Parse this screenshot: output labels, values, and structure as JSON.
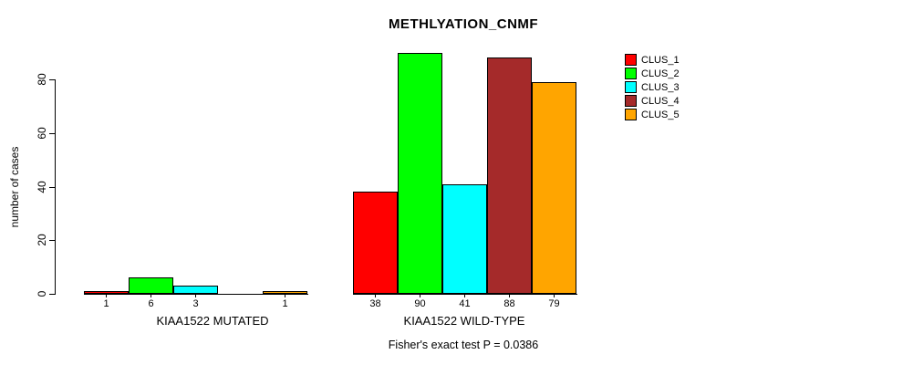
{
  "chart_data": {
    "type": "bar",
    "title": "METHLYATION_CNMF",
    "ylabel": "number of cases",
    "xlabel": "",
    "ylim": [
      0,
      90
    ],
    "yticks": [
      0,
      20,
      40,
      60,
      80
    ],
    "grid": false,
    "legend_position": "right",
    "groups": [
      "KIAA1522 MUTATED",
      "KIAA1522 WILD-TYPE"
    ],
    "series": [
      {
        "name": "CLUS_1",
        "color": "#FF0000",
        "values": [
          1,
          38
        ]
      },
      {
        "name": "CLUS_2",
        "color": "#00FF00",
        "values": [
          6,
          90
        ]
      },
      {
        "name": "CLUS_3",
        "color": "#00FFFF",
        "values": [
          3,
          41
        ]
      },
      {
        "name": "CLUS_4",
        "color": "#A52A2A",
        "values": [
          0,
          88
        ]
      },
      {
        "name": "CLUS_5",
        "color": "#FFA500",
        "values": [
          1,
          79
        ]
      }
    ],
    "bar_labels": [
      [
        "1",
        "6",
        "3",
        "",
        "1"
      ],
      [
        "38",
        "90",
        "41",
        "88",
        "79"
      ]
    ],
    "annotation": "Fisher's exact test P = 0.0386"
  }
}
